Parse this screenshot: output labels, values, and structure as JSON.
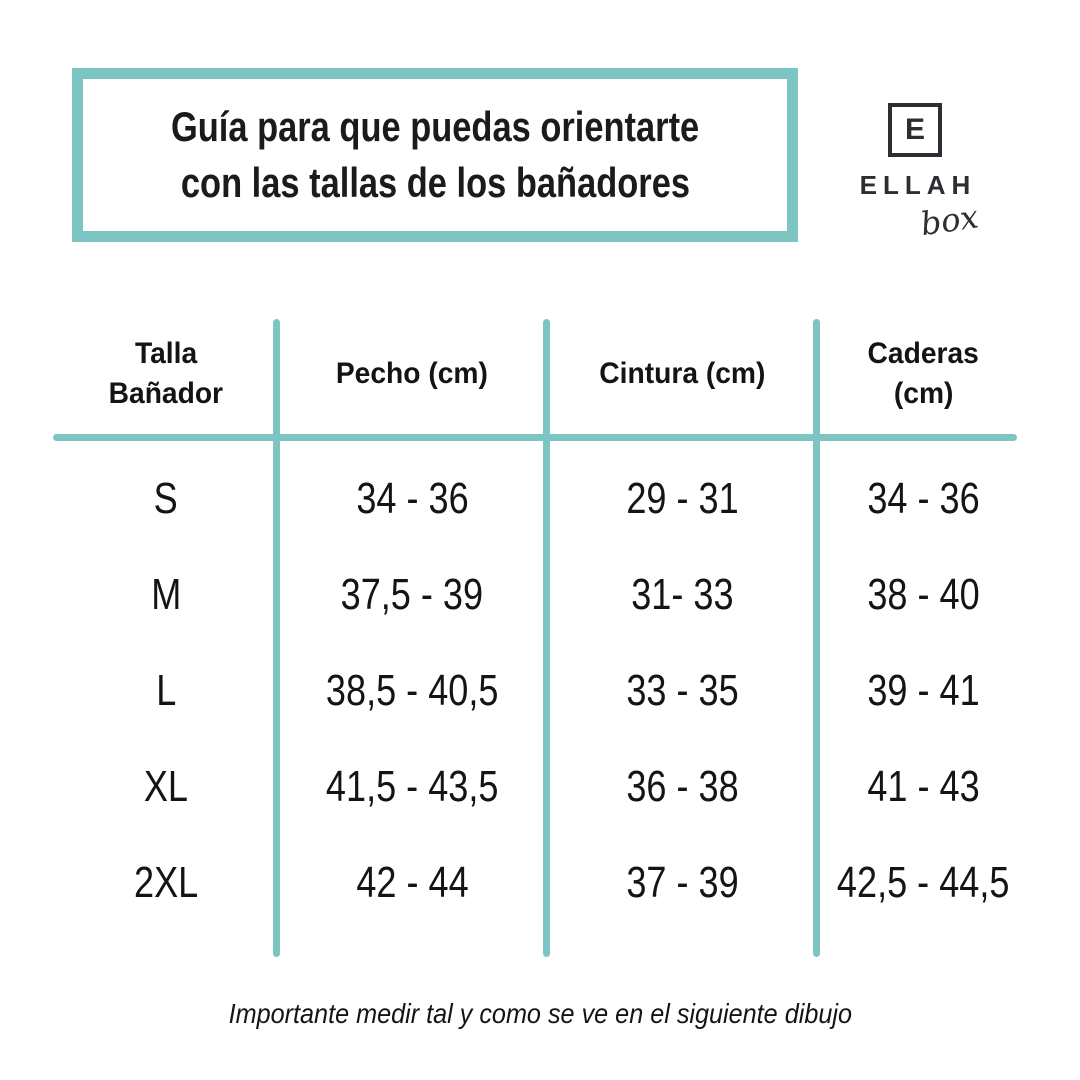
{
  "colors": {
    "accent_teal": "#7cc5c2",
    "ink": "#141414",
    "logo_ink": "#2b2e33",
    "background": "#ffffff"
  },
  "title": {
    "line1": "Guía para que puedas orientarte",
    "line2": "con las tallas de los bañadores"
  },
  "logo": {
    "monogram": "E",
    "brand": "ELLAH",
    "tagline": "box"
  },
  "size_table": {
    "columns": [
      {
        "label_line1": "Talla",
        "label_line2": "Bañador"
      },
      {
        "label_line1": "Pecho (cm)"
      },
      {
        "label_line1": "Cintura (cm)"
      },
      {
        "label_line1": "Caderas",
        "label_line2": "(cm)"
      }
    ],
    "rows": [
      {
        "size": "S",
        "pecho": "34 - 36",
        "cintura": "29 - 31",
        "caderas": "34 - 36"
      },
      {
        "size": "M",
        "pecho": "37,5 - 39",
        "cintura": "31- 33",
        "caderas": "38 - 40"
      },
      {
        "size": "L",
        "pecho": "38,5 - 40,5",
        "cintura": "33 - 35",
        "caderas": "39 - 41"
      },
      {
        "size": "XL",
        "pecho": "41,5 - 43,5",
        "cintura": "36 - 38",
        "caderas": "41 - 43"
      },
      {
        "size": "2XL",
        "pecho": "42 - 44",
        "cintura": "37 - 39",
        "caderas": "42,5 - 44,5"
      }
    ]
  },
  "footer": {
    "note": "Importante medir tal y como se ve en el siguiente dibujo"
  }
}
